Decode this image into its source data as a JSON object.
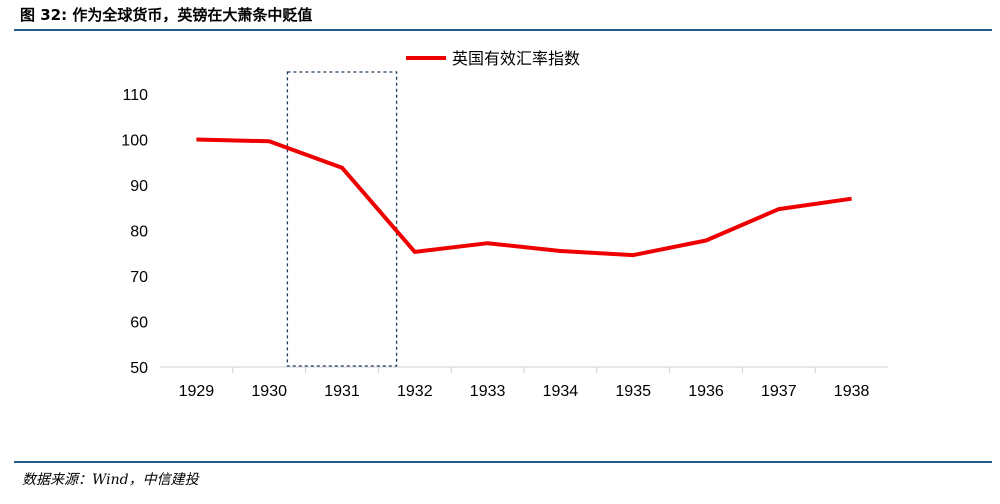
{
  "page": {
    "title": "图 32: 作为全球货币，英镑在大萧条中贬值",
    "source": "数据来源：Wind，中信建投"
  },
  "colors": {
    "accent_rule": "#1f5e88",
    "series_line": "#ee0000",
    "highlight_box": "#1f3b5c"
  },
  "chart_data": {
    "type": "line",
    "x": [
      "1929",
      "1930",
      "1931",
      "1932",
      "1933",
      "1934",
      "1935",
      "1936",
      "1937",
      "1938"
    ],
    "series": [
      {
        "name": "英国有效汇率指数",
        "values": [
          100,
          99.6,
          93.8,
          75.3,
          77.2,
          75.5,
          74.6,
          77.8,
          84.7,
          87.0
        ]
      }
    ],
    "ylim": [
      50,
      110
    ],
    "yticks": [
      50,
      60,
      70,
      80,
      90,
      100,
      110
    ],
    "grid": false,
    "legend": "top-center",
    "highlight_range": [
      "1930",
      "1932"
    ]
  }
}
